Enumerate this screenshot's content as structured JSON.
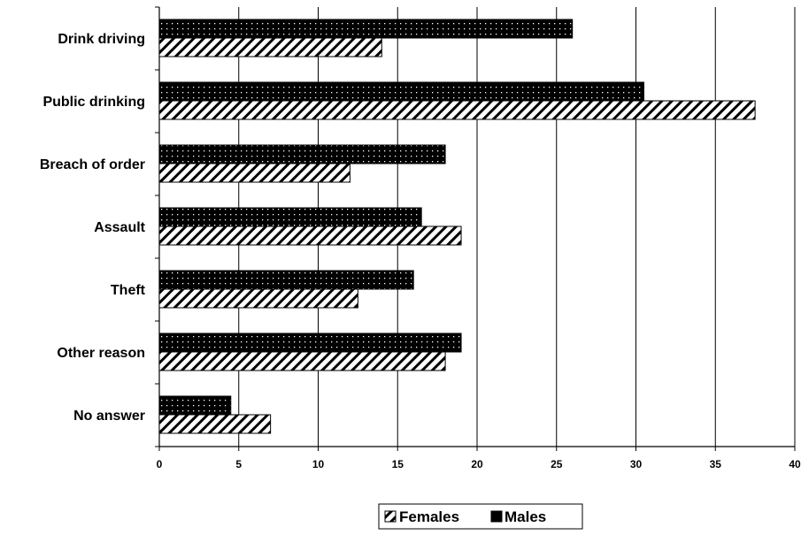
{
  "chart_data": {
    "type": "bar",
    "orientation": "horizontal",
    "title": "",
    "xlabel": "",
    "ylabel": "",
    "categories": [
      "Drink driving",
      "Public drinking",
      "Breach of order",
      "Assault",
      "Theft",
      "Other reason",
      "No answer"
    ],
    "series": [
      {
        "name": "Males",
        "values": [
          26,
          30.5,
          18,
          16.5,
          16,
          19,
          4.5
        ],
        "color": "#000000",
        "pattern": "dotted"
      },
      {
        "name": "Females",
        "values": [
          14,
          37.5,
          12,
          19,
          12.5,
          18,
          7
        ],
        "color": "#ffffff",
        "pattern": "diagonal-hatch"
      }
    ],
    "xlim": [
      0,
      40
    ],
    "x_ticks": [
      0,
      5,
      10,
      15,
      20,
      25,
      30,
      35,
      40
    ],
    "grid": "vertical",
    "legend": {
      "position": "bottom",
      "entries": [
        "Females",
        "Males"
      ]
    }
  }
}
